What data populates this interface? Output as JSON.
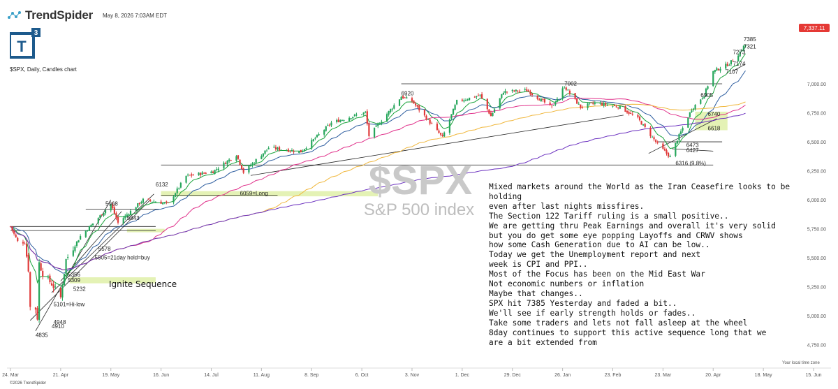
{
  "header": {
    "brand": "TrendSpider",
    "timestamp": "May 8, 2026 7:03AM EDT",
    "logo_text": "T",
    "logo_sup": "3",
    "subtitle": "$SPX, Daily, Candles chart",
    "copyright": "©2026 TrendSpider",
    "timezone_note": "Your local time zone"
  },
  "watermark": {
    "symbol": "$SPX",
    "name": "S&P 500 index"
  },
  "colors": {
    "up": "#26a65b",
    "down": "#e03a3a",
    "price_badge": "#e53935",
    "highlight": "#dff0a8",
    "ema8": "#19a33a",
    "ema21": "#2d5d9f",
    "sma50": "#e0308a",
    "sma100": "#f0b73c",
    "sma200": "#6a2fbf"
  },
  "commentary": [
    "Mixed markets around the World as the Iran Ceasefire looks to be holding",
    "even after last nights missfires.",
    "The Section 122 Tariff ruling is a small positive..",
    "We are getting thru Peak Earnings and overall it's very solid",
    "but you do get some eye popping Layoffs and CRWV shows",
    "how some Cash Generation due to AI can be low..",
    "Today we get the Unemployment report and next",
    "week is CPI and PPI..",
    "Most of the Focus has been on the Mid East War",
    "Not economic numbers or inflation",
    "Maybe that changes..",
    "SPX hit 7385 Yesterday and faded a bit..",
    "We'll see if early strength holds or fades..",
    "Take some traders and lets not fall asleep at the wheel",
    "8day continues to support this active sequence long that we",
    "are a bit extended from"
  ],
  "chart_data": {
    "type": "candlestick",
    "title": "$SPX, Daily, Candles chart",
    "x_range": [
      "2025-03-24",
      "2026-06-15"
    ],
    "xticks": [
      "24. Mar",
      "21. Apr",
      "19. May",
      "16. Jun",
      "14. Jul",
      "11. Aug",
      "8. Sep",
      "6. Oct",
      "3. Nov",
      "1. Dec",
      "29. Dec",
      "26. Jan",
      "23. Feb",
      "23. Mar",
      "20. Apr",
      "18. May",
      "15. Jun"
    ],
    "ylim": [
      4700,
      7500
    ],
    "yticks": [
      "4,750.00",
      "5,000.00",
      "5,250.00",
      "5,500.00",
      "5,750.00",
      "6,000.00",
      "6,250.00",
      "6,500.00",
      "6,750.00",
      "7,000.00"
    ],
    "last_price": "7,337.11",
    "close_path": [
      [
        "2025-03-24",
        5770
      ],
      [
        "2025-03-28",
        5640
      ],
      [
        "2025-04-01",
        5630
      ],
      [
        "2025-04-03",
        5400
      ],
      [
        "2025-04-04",
        5074
      ],
      [
        "2025-04-07",
        5062
      ],
      [
        "2025-04-08",
        4982
      ],
      [
        "2025-04-09",
        5456
      ],
      [
        "2025-04-11",
        5363
      ],
      [
        "2025-04-16",
        5275
      ],
      [
        "2025-04-21",
        5158
      ],
      [
        "2025-04-24",
        5484
      ],
      [
        "2025-05-02",
        5686
      ],
      [
        "2025-05-12",
        5844
      ],
      [
        "2025-05-19",
        5963
      ],
      [
        "2025-05-23",
        5802
      ],
      [
        "2025-06-06",
        6000
      ],
      [
        "2025-06-20",
        5967
      ],
      [
        "2025-06-30",
        6205
      ],
      [
        "2025-07-15",
        6244
      ],
      [
        "2025-07-28",
        6389
      ],
      [
        "2025-08-01",
        6238
      ],
      [
        "2025-08-15",
        6449
      ],
      [
        "2025-09-02",
        6415
      ],
      [
        "2025-09-19",
        6664
      ],
      [
        "2025-10-08",
        6753
      ],
      [
        "2025-10-10",
        6552
      ],
      [
        "2025-10-28",
        6890
      ],
      [
        "2025-11-03",
        6851
      ],
      [
        "2025-11-20",
        6538
      ],
      [
        "2025-11-28",
        6849
      ],
      [
        "2025-12-11",
        6901
      ],
      [
        "2025-12-17",
        6721
      ],
      [
        "2025-12-24",
        6932
      ],
      [
        "2026-01-06",
        6944
      ],
      [
        "2026-01-20",
        6797
      ],
      [
        "2026-01-27",
        6978
      ],
      [
        "2026-02-05",
        6798
      ],
      [
        "2026-02-13",
        6836
      ],
      [
        "2026-02-27",
        6800
      ],
      [
        "2026-03-09",
        6700
      ],
      [
        "2026-03-20",
        6480
      ],
      [
        "2026-03-27",
        6369
      ],
      [
        "2026-03-31",
        6520
      ],
      [
        "2026-04-08",
        6782
      ],
      [
        "2026-04-15",
        6905
      ],
      [
        "2026-04-20",
        7107
      ],
      [
        "2026-04-29",
        7174
      ],
      [
        "2026-05-05",
        7273
      ],
      [
        "2026-05-07",
        7321
      ],
      [
        "2026-05-08",
        7337
      ]
    ],
    "moving_averages": [
      {
        "type": "ema8",
        "color": "#19a33a"
      },
      {
        "type": "ema21",
        "color": "#2d5d9f"
      },
      {
        "type": "sma50",
        "color": "#e0308a"
      },
      {
        "type": "sma100",
        "color": "#f0b73c"
      },
      {
        "type": "sma200",
        "color": "#6a2fbf"
      }
    ],
    "price_labels": [
      {
        "date": "2025-04-07",
        "value": 4835,
        "text": "4835"
      },
      {
        "date": "2025-04-16",
        "value": 4910,
        "text": "4910"
      },
      {
        "date": "2025-04-17",
        "value": 4948,
        "text": "4948"
      },
      {
        "date": "2025-04-17",
        "value": 5101,
        "text": "5101=Hi-low"
      },
      {
        "date": "2025-04-28",
        "value": 5232,
        "text": "5232"
      },
      {
        "date": "2025-04-25",
        "value": 5309,
        "text": "5309"
      },
      {
        "date": "2025-04-25",
        "value": 5356,
        "text": "5356"
      },
      {
        "date": "2025-05-10",
        "value": 5505,
        "text": "5505=21day held=buy"
      },
      {
        "date": "2025-05-12",
        "value": 5578,
        "text": "5578"
      },
      {
        "date": "2025-05-28",
        "value": 5843,
        "text": "5843"
      },
      {
        "date": "2025-05-16",
        "value": 5968,
        "text": "5968"
      },
      {
        "date": "2025-06-13",
        "value": 6132,
        "text": "6132"
      },
      {
        "date": "2025-07-30",
        "value": 6059,
        "text": "6059=Long"
      },
      {
        "date": "2025-10-28",
        "value": 6920,
        "text": "6920"
      },
      {
        "date": "2026-01-27",
        "value": 7002,
        "text": "7002"
      },
      {
        "date": "2026-04-13",
        "value": 6905,
        "text": "6905"
      },
      {
        "date": "2026-04-17",
        "value": 6740,
        "text": "6740"
      },
      {
        "date": "2026-04-17",
        "value": 6618,
        "text": "6618"
      },
      {
        "date": "2026-04-05",
        "value": 6473,
        "text": "6473"
      },
      {
        "date": "2026-04-05",
        "value": 6427,
        "text": "6427"
      },
      {
        "date": "2026-03-30",
        "value": 6316,
        "text": "6316 (9.8%)"
      },
      {
        "date": "2026-04-27",
        "value": 7107,
        "text": "7107"
      },
      {
        "date": "2026-05-01",
        "value": 7174,
        "text": "7174"
      },
      {
        "date": "2026-05-01",
        "value": 7273,
        "text": "7273"
      },
      {
        "date": "2026-05-07",
        "value": 7321,
        "text": "7321"
      },
      {
        "date": "2026-05-07",
        "value": 7385,
        "text": "7385"
      }
    ],
    "horizontal_lines": [
      {
        "from": "2025-03-24",
        "to": "2025-06-13",
        "value": 5770
      },
      {
        "from": "2025-03-24",
        "to": "2025-06-13",
        "value": 5735
      },
      {
        "from": "2025-05-05",
        "to": "2025-06-15",
        "value": 5920
      },
      {
        "from": "2025-06-16",
        "to": "2026-04-20",
        "value": 6300
      },
      {
        "from": "2025-06-16",
        "to": "2025-08-20",
        "value": 6040
      },
      {
        "from": "2025-10-28",
        "to": "2026-04-25",
        "value": 7000
      },
      {
        "from": "2026-03-20",
        "to": "2026-04-25",
        "value": 6500
      }
    ],
    "zones": [
      {
        "label": "Ignite Sequence",
        "value": 5306
      },
      {
        "label": "6059=Long",
        "value": 6060
      },
      {
        "label": "6740 / 6618",
        "value": 6680
      }
    ]
  }
}
